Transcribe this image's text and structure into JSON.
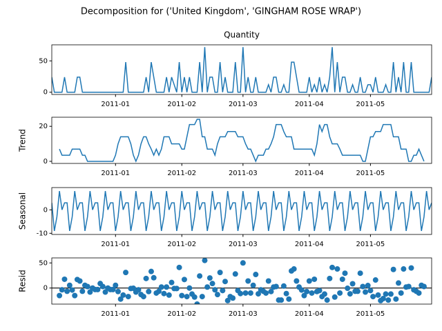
{
  "title": "Decomposition for ('United Kingdom', 'GINGHAM ROSE WRAP')",
  "chart_data": [
    {
      "type": "line",
      "title": "Quantity",
      "color": "#1f77b4",
      "xlim": [
        0,
        149
      ],
      "ylim": [
        -3.6,
        75.6
      ],
      "yticks": [
        0,
        50
      ],
      "xticks": [
        {
          "value": 25,
          "label": "2011-01"
        },
        {
          "value": 51,
          "label": "2011-02"
        },
        {
          "value": 75,
          "label": "2011-03"
        },
        {
          "value": 101,
          "label": "2011-04"
        },
        {
          "value": 125,
          "label": "2011-05"
        }
      ],
      "values": [
        24,
        0,
        0,
        0,
        0,
        24,
        0,
        0,
        0,
        0,
        24,
        24,
        0,
        0,
        0,
        0,
        0,
        0,
        0,
        0,
        0,
        0,
        0,
        0,
        0,
        0,
        0,
        0,
        0,
        48,
        0,
        0,
        0,
        0,
        0,
        0,
        0,
        24,
        0,
        48,
        24,
        0,
        0,
        0,
        0,
        24,
        0,
        24,
        12,
        0,
        48,
        0,
        24,
        0,
        24,
        0,
        0,
        0,
        48,
        0,
        72,
        0,
        24,
        24,
        0,
        0,
        48,
        0,
        24,
        0,
        0,
        0,
        48,
        0,
        0,
        72,
        0,
        24,
        0,
        0,
        24,
        0,
        0,
        0,
        0,
        12,
        0,
        24,
        24,
        0,
        0,
        12,
        0,
        0,
        48,
        48,
        24,
        0,
        0,
        0,
        0,
        24,
        0,
        12,
        0,
        24,
        0,
        12,
        0,
        24,
        72,
        0,
        48,
        0,
        24,
        24,
        0,
        0,
        12,
        0,
        0,
        24,
        0,
        0,
        12,
        12,
        0,
        24,
        0,
        0,
        0,
        12,
        0,
        0,
        48,
        0,
        24,
        0,
        48,
        0,
        0,
        48,
        0,
        0,
        0,
        0,
        0,
        0,
        0,
        24
      ]
    },
    {
      "type": "line",
      "ylabel": "Trend",
      "color": "#1f77b4",
      "xlim": [
        0,
        149
      ],
      "ylim": [
        -1.2,
        25.2
      ],
      "yticks": [
        0,
        20
      ],
      "xticks": [
        {
          "value": 25,
          "label": "2011-01"
        },
        {
          "value": 51,
          "label": "2011-02"
        },
        {
          "value": 75,
          "label": "2011-03"
        },
        {
          "value": 101,
          "label": "2011-04"
        },
        {
          "value": 125,
          "label": "2011-05"
        }
      ],
      "values": [
        null,
        null,
        null,
        7,
        3.5,
        3.5,
        3.5,
        3.5,
        7,
        7,
        7,
        7,
        3.5,
        3.5,
        0,
        0,
        0,
        0,
        0,
        0,
        0,
        0,
        0,
        0,
        0,
        3.5,
        10,
        14,
        14,
        14,
        14,
        10,
        3.5,
        0,
        3.5,
        10,
        14,
        14,
        10,
        7,
        3.5,
        7,
        3.5,
        7,
        14,
        14,
        14,
        10,
        10,
        10,
        10,
        7,
        7,
        14,
        21,
        21,
        21,
        24,
        24,
        14,
        14,
        7,
        7,
        7,
        3.5,
        10,
        14,
        14,
        14,
        17,
        17,
        17,
        17,
        14,
        14,
        14,
        10,
        7,
        7,
        3.5,
        0,
        3.5,
        3.5,
        3.5,
        7,
        7,
        10,
        14,
        21,
        21,
        21,
        17,
        14,
        14,
        14,
        7,
        7,
        7,
        7,
        7,
        7,
        7,
        7,
        3.5,
        10,
        21,
        17,
        21,
        21,
        14,
        10,
        10,
        10,
        7,
        3.5,
        3.5,
        3.5,
        3.5,
        3.5,
        3.5,
        3.5,
        3.5,
        0,
        0,
        7,
        14,
        14,
        17,
        17,
        17,
        21,
        21,
        21,
        21,
        14,
        14,
        14,
        7,
        7,
        7,
        0,
        0,
        3.5,
        3.5,
        7,
        3.5,
        0,
        null,
        null,
        null
      ]
    },
    {
      "type": "line",
      "ylabel": "Seasonal",
      "color": "#1f77b4",
      "xlim": [
        0,
        149
      ],
      "ylim": [
        -10.5,
        9.5
      ],
      "yticks": [
        -10,
        0
      ],
      "xticks": [
        {
          "value": 25,
          "label": "2011-01"
        },
        {
          "value": 51,
          "label": "2011-02"
        },
        {
          "value": 75,
          "label": "2011-03"
        },
        {
          "value": 101,
          "label": "2011-04"
        },
        {
          "value": 125,
          "label": "2011-05"
        }
      ],
      "values": [
        3,
        -9,
        -3,
        8,
        0,
        3,
        3,
        -9,
        -3,
        8,
        0,
        3,
        3,
        -9,
        -3,
        8,
        0,
        3,
        3,
        -9,
        -3,
        8,
        0,
        3,
        3,
        -9,
        -3,
        8,
        0,
        3,
        3,
        -9,
        -3,
        8,
        0,
        3,
        3,
        -9,
        -3,
        8,
        0,
        3,
        3,
        -9,
        -3,
        8,
        0,
        3,
        3,
        -9,
        -3,
        8,
        0,
        3,
        3,
        -9,
        -3,
        8,
        0,
        3,
        3,
        -9,
        -3,
        8,
        0,
        3,
        3,
        -9,
        -3,
        8,
        0,
        3,
        3,
        -9,
        -3,
        8,
        0,
        3,
        3,
        -9,
        -3,
        8,
        0,
        3,
        3,
        -9,
        -3,
        8,
        0,
        3,
        3,
        -9,
        -3,
        8,
        0,
        3,
        3,
        -9,
        -3,
        8,
        0,
        3,
        3,
        -9,
        -3,
        8,
        0,
        3,
        3,
        -9,
        -3,
        8,
        0,
        3,
        3,
        -9,
        -3,
        8,
        0,
        3,
        3,
        -9,
        -3,
        8,
        0,
        3,
        3,
        -9,
        -3,
        8,
        0,
        3,
        3,
        -9,
        -3,
        8,
        0,
        3,
        3,
        -9,
        -3,
        8,
        0,
        3,
        3,
        -9,
        -3,
        8,
        0,
        3
      ]
    },
    {
      "type": "scatter",
      "ylabel": "Resid",
      "color": "#1f77b4",
      "xlim": [
        0,
        149
      ],
      "ylim": [
        -32,
        60
      ],
      "yticks": [
        0,
        50
      ],
      "xticks": [
        {
          "value": 25,
          "label": "2011-01"
        },
        {
          "value": 51,
          "label": "2011-02"
        },
        {
          "value": 75,
          "label": "2011-03"
        },
        {
          "value": 101,
          "label": "2011-04"
        },
        {
          "value": 125,
          "label": "2011-05"
        }
      ],
      "values": [
        null,
        null,
        null,
        -15,
        -3.5,
        17.5,
        -6.5,
        5.5,
        -4,
        -15,
        17,
        14,
        -6.5,
        5.5,
        3,
        -8,
        0,
        -3,
        -3,
        9,
        3,
        -8,
        0,
        -3,
        -3,
        5.5,
        -7,
        -22,
        -14,
        31,
        -17,
        -1,
        -0.5,
        -8,
        -3.5,
        -13,
        -17,
        19,
        -7,
        33,
        20.5,
        -10,
        -6.5,
        2,
        -11,
        2,
        -14,
        11,
        -1,
        -1,
        41,
        -15,
        17,
        -17,
        0,
        -12,
        -18,
        -32,
        24,
        -17,
        55,
        2,
        20,
        9,
        -3.5,
        -13,
        31,
        -5,
        13,
        -25,
        -17,
        -20,
        28,
        -5,
        -11,
        50,
        -10,
        14,
        -10,
        5.5,
        27,
        -11.5,
        -3.5,
        -6.5,
        -10,
        14,
        -7,
        2,
        3,
        -24,
        -24,
        4,
        -11,
        -22,
        34,
        38,
        14,
        2,
        -4,
        -15,
        -7,
        14,
        -10,
        17.5,
        -7,
        -5,
        -17,
        -12,
        -24,
        19,
        41,
        -18,
        38,
        -10,
        17.5,
        29.5,
        -0.5,
        -11.5,
        8.5,
        -6.5,
        -6.5,
        29.5,
        3,
        -8,
        5,
        -5,
        -17,
        16,
        -14,
        -25,
        -21,
        -12,
        -24,
        -12,
        37,
        -22,
        10,
        -10,
        38,
        2,
        3,
        40,
        -3.5,
        -6.5,
        -10,
        5.5,
        3,
        null,
        null,
        null
      ]
    }
  ]
}
